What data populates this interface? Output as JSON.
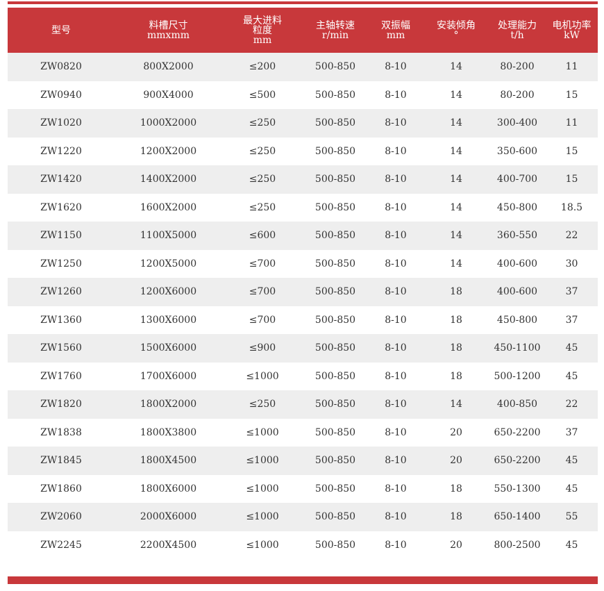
{
  "header": [
    "型号",
    "料槽尺寸\nmmxmm",
    "最大进料\n粒度\nmm",
    "主轴转速\nr/min",
    "双振幅\nmm",
    "安装倾角\n°",
    "处理能力\nt/h",
    "电机功率\nkW"
  ],
  "rows": [
    [
      "ZW0820",
      "800X2000",
      "≤200",
      "500-850",
      "8-10",
      "14",
      "80-200",
      "11"
    ],
    [
      "ZW0940",
      "900X4000",
      "≤500",
      "500-850",
      "8-10",
      "14",
      "80-200",
      "15"
    ],
    [
      "ZW1020",
      "1000X2000",
      "≤250",
      "500-850",
      "8-10",
      "14",
      "300-400",
      "11"
    ],
    [
      "ZW1220",
      "1200X2000",
      "≤250",
      "500-850",
      "8-10",
      "14",
      "350-600",
      "15"
    ],
    [
      "ZW1420",
      "1400X2000",
      "≤250",
      "500-850",
      "8-10",
      "14",
      "400-700",
      "15"
    ],
    [
      "ZW1620",
      "1600X2000",
      "≤250",
      "500-850",
      "8-10",
      "14",
      "450-800",
      "18.5"
    ],
    [
      "ZW1150",
      "1100X5000",
      "≤600",
      "500-850",
      "8-10",
      "14",
      "360-550",
      "22"
    ],
    [
      "ZW1250",
      "1200X5000",
      "≤700",
      "500-850",
      "8-10",
      "14",
      "400-600",
      "30"
    ],
    [
      "ZW1260",
      "1200X6000",
      "≤700",
      "500-850",
      "8-10",
      "18",
      "400-600",
      "37"
    ],
    [
      "ZW1360",
      "1300X6000",
      "≤700",
      "500-850",
      "8-10",
      "18",
      "450-800",
      "37"
    ],
    [
      "ZW1560",
      "1500X6000",
      "≤900",
      "500-850",
      "8-10",
      "18",
      "450-1100",
      "45"
    ],
    [
      "ZW1760",
      "1700X6000",
      "≤1000",
      "500-850",
      "8-10",
      "18",
      "500-1200",
      "45"
    ],
    [
      "ZW1820",
      "1800X2000",
      "≤250",
      "500-850",
      "8-10",
      "14",
      "400-850",
      "22"
    ],
    [
      "ZW1838",
      "1800X3800",
      "≤1000",
      "500-850",
      "8-10",
      "20",
      "650-2200",
      "37"
    ],
    [
      "ZW1845",
      "1800X4500",
      "≤1000",
      "500-850",
      "8-10",
      "20",
      "650-2200",
      "45"
    ],
    [
      "ZW1860",
      "1800X6000",
      "≤1000",
      "500-850",
      "8-10",
      "18",
      "550-1300",
      "45"
    ],
    [
      "ZW2060",
      "2000X6000",
      "≤1000",
      "500-850",
      "8-10",
      "18",
      "650-1400",
      "55"
    ],
    [
      "ZW2245",
      "2200X4500",
      "≤1000",
      "500-850",
      "8-10",
      "20",
      "800-2500",
      "45"
    ]
  ],
  "colors": {
    "accent": "#c8383b",
    "stripe": "#eeeeee"
  }
}
